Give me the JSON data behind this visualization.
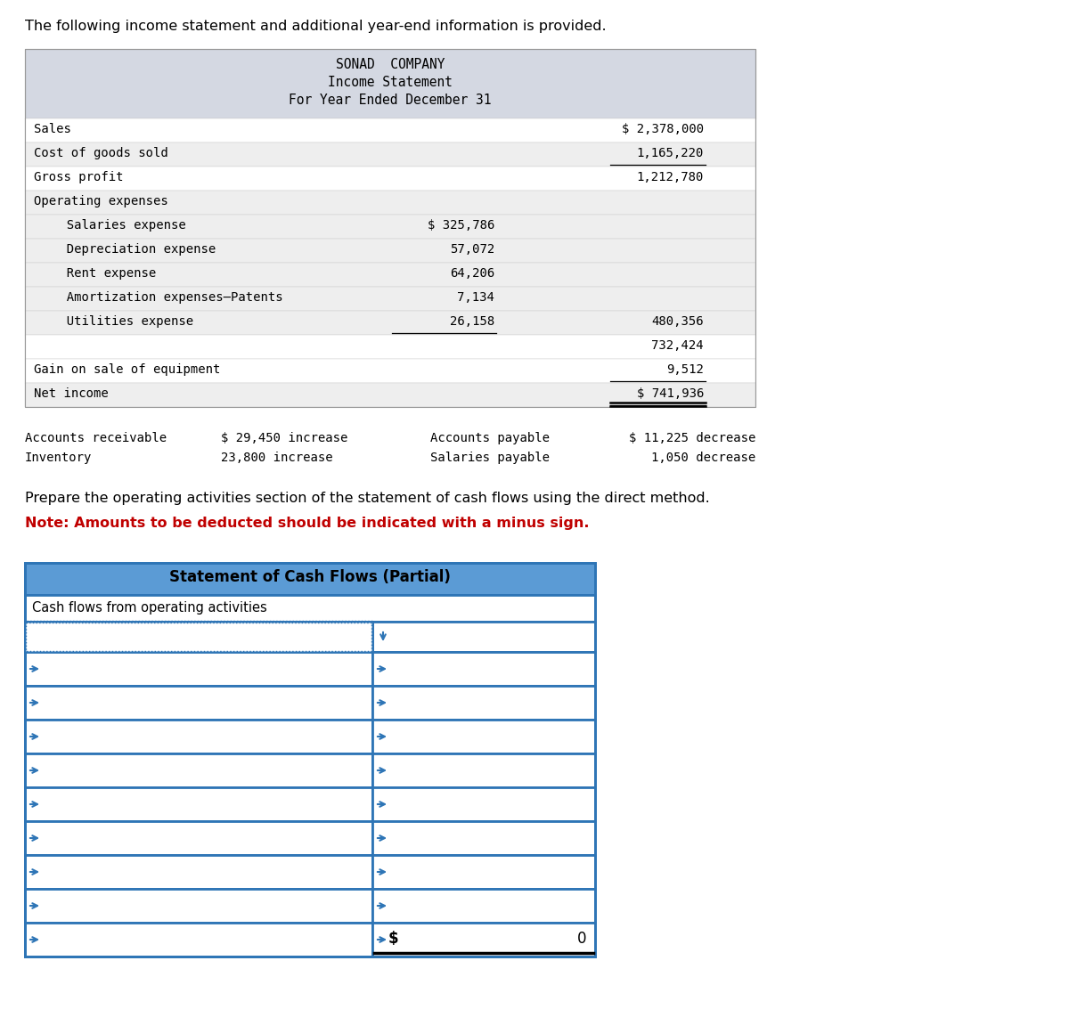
{
  "bg_color": "#ffffff",
  "intro_text": "The following income statement and additional year-end information is provided.",
  "income_statement": {
    "header_bg": "#d4d8e2",
    "header_lines": [
      "SONAD  COMPANY",
      "Income Statement",
      "For Year Ended December 31"
    ],
    "rows": [
      {
        "label": "Sales",
        "indent": 0,
        "col1": "",
        "col2": "$ 2,378,000",
        "bg": "#ffffff",
        "ul1": false,
        "ul2": false,
        "dbl2": false
      },
      {
        "label": "Cost of goods sold",
        "indent": 0,
        "col1": "",
        "col2": "1,165,220",
        "bg": "#eeeeee",
        "ul1": false,
        "ul2": true,
        "dbl2": false
      },
      {
        "label": "Gross profit",
        "indent": 0,
        "col1": "",
        "col2": "1,212,780",
        "bg": "#ffffff",
        "ul1": false,
        "ul2": false,
        "dbl2": false
      },
      {
        "label": "Operating expenses",
        "indent": 0,
        "col1": "",
        "col2": "",
        "bg": "#eeeeee",
        "ul1": false,
        "ul2": false,
        "dbl2": false
      },
      {
        "label": "  Salaries expense",
        "indent": 1,
        "col1": "$ 325,786",
        "col2": "",
        "bg": "#eeeeee",
        "ul1": false,
        "ul2": false,
        "dbl2": false
      },
      {
        "label": "  Depreciation expense",
        "indent": 1,
        "col1": "57,072",
        "col2": "",
        "bg": "#eeeeee",
        "ul1": false,
        "ul2": false,
        "dbl2": false
      },
      {
        "label": "  Rent expense",
        "indent": 1,
        "col1": "64,206",
        "col2": "",
        "bg": "#eeeeee",
        "ul1": false,
        "ul2": false,
        "dbl2": false
      },
      {
        "label": "  Amortization expenses–Patents",
        "indent": 1,
        "col1": "7,134",
        "col2": "",
        "bg": "#eeeeee",
        "ul1": false,
        "ul2": false,
        "dbl2": false
      },
      {
        "label": "  Utilities expense",
        "indent": 1,
        "col1": "26,158",
        "col2": "480,356",
        "bg": "#eeeeee",
        "ul1": true,
        "ul2": false,
        "dbl2": false
      },
      {
        "label": "",
        "indent": 0,
        "col1": "",
        "col2": "732,424",
        "bg": "#ffffff",
        "ul1": false,
        "ul2": false,
        "dbl2": false
      },
      {
        "label": "Gain on sale of equipment",
        "indent": 0,
        "col1": "",
        "col2": "9,512",
        "bg": "#ffffff",
        "ul1": false,
        "ul2": true,
        "dbl2": false
      },
      {
        "label": "Net income",
        "indent": 0,
        "col1": "",
        "col2": "$ 741,936",
        "bg": "#eeeeee",
        "ul1": false,
        "ul2": true,
        "dbl2": true
      }
    ]
  },
  "ai_row1_left": "Accounts receivable",
  "ai_row1_mid": "$ 29,450 increase",
  "ai_row1_rlabel": "Accounts payable",
  "ai_row1_rval": "$ 11,225 decrease",
  "ai_row2_left": "Inventory",
  "ai_row2_mid": "23,800 increase",
  "ai_row2_rlabel": "Salaries payable",
  "ai_row2_rval": "1,050 decrease",
  "instruction_text": "Prepare the operating activities section of the statement of cash flows using the direct method.",
  "note_text": "Note: Amounts to be deducted should be indicated with a minus sign.",
  "cf_header_text": "Statement of Cash Flows (Partial)",
  "cf_header_bg": "#5b9bd5",
  "cf_border_color": "#2e75b6",
  "cf_first_row_label": "Cash flows from operating activities",
  "cf_num_data_rows": 9,
  "cf_last_dollar": "$",
  "cf_last_value": "0"
}
